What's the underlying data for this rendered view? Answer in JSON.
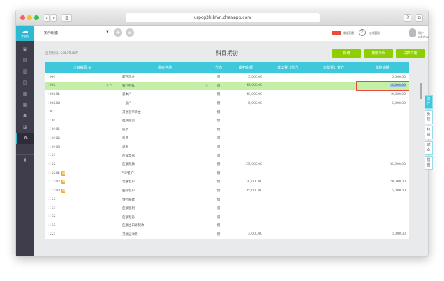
{
  "browser": {
    "url": "urpcg3hibfvn.chanapp.com"
  },
  "sidebar": {
    "logo_label": "专业版",
    "active_index": 7
  },
  "header": {
    "account": "演示账套",
    "live": "课程直播",
    "help": "在线客服",
    "user": "用户m8VrAr"
  },
  "main": {
    "period_label": "启用期间：",
    "period": "2017年06月",
    "title": "科目期初",
    "buttons": [
      "新增",
      "数量外币",
      "试算平衡"
    ],
    "columns": [
      "科目编码",
      "科目名称",
      "方向",
      "期初余额",
      "本年累计借方",
      "本年累计贷方",
      "年初余额"
    ],
    "rows": [
      {
        "code": "1001",
        "name": "库存现金",
        "dir": "借",
        "opening": "5,000.00",
        "debit": "",
        "credit": "",
        "year_start": "5,000.00"
      },
      {
        "code": "1002",
        "name": "银行存款",
        "dir": "借",
        "opening": "45,000.00",
        "debit": "",
        "credit": "",
        "year_start": "45,000.00",
        "selected": true
      },
      {
        "code": "100201",
        "name": "基本户",
        "dir": "借",
        "opening": "40,000.00",
        "debit": "",
        "credit": "",
        "year_start": "40,000.00"
      },
      {
        "code": "100202",
        "name": "一般户",
        "dir": "借",
        "opening": "5,000.00",
        "debit": "",
        "credit": "",
        "year_start": "5,000.00"
      },
      {
        "code": "1012",
        "name": "其他货币资金",
        "dir": "借",
        "opening": "",
        "debit": "",
        "credit": "",
        "year_start": ""
      },
      {
        "code": "1101",
        "name": "短期投资",
        "dir": "借",
        "opening": "",
        "debit": "",
        "credit": "",
        "year_start": ""
      },
      {
        "code": "110101",
        "name": "股票",
        "dir": "借",
        "opening": "",
        "debit": "",
        "credit": "",
        "year_start": ""
      },
      {
        "code": "110102",
        "name": "债券",
        "dir": "借",
        "opening": "",
        "debit": "",
        "credit": "",
        "year_start": ""
      },
      {
        "code": "110103",
        "name": "基金",
        "dir": "借",
        "opening": "",
        "debit": "",
        "credit": "",
        "year_start": ""
      },
      {
        "code": "1121",
        "name": "应收票据",
        "dir": "借",
        "opening": "",
        "debit": "",
        "credit": "",
        "year_start": ""
      },
      {
        "code": "1122",
        "name": "应收账款",
        "dir": "借",
        "opening": "35,000.00",
        "debit": "",
        "credit": "",
        "year_start": "35,000.00"
      },
      {
        "code": "112201",
        "name": "VIP客户",
        "dir": "借",
        "opening": "",
        "debit": "",
        "credit": "",
        "year_start": "",
        "badge": "辅"
      },
      {
        "code": "112202",
        "name": "普通客户",
        "dir": "借",
        "opening": "20,000.00",
        "debit": "",
        "credit": "",
        "year_start": "20,000.00",
        "badge": "辅"
      },
      {
        "code": "112203",
        "name": "国际客户",
        "dir": "借",
        "opening": "15,000.00",
        "debit": "",
        "credit": "",
        "year_start": "15,000.00",
        "badge": "辅"
      },
      {
        "code": "1123",
        "name": "预付账款",
        "dir": "借",
        "opening": "",
        "debit": "",
        "credit": "",
        "year_start": ""
      },
      {
        "code": "1131",
        "name": "应收股利",
        "dir": "借",
        "opening": "",
        "debit": "",
        "credit": "",
        "year_start": ""
      },
      {
        "code": "1132",
        "name": "应收利息",
        "dir": "借",
        "opening": "",
        "debit": "",
        "credit": "",
        "year_start": ""
      },
      {
        "code": "1133",
        "name": "应收出口退税款",
        "dir": "借",
        "opening": "",
        "debit": "",
        "credit": "",
        "year_start": ""
      },
      {
        "code": "1221",
        "name": "其他应收款",
        "dir": "借",
        "opening": "3,000.00",
        "debit": "",
        "credit": "",
        "year_start": "3,000.00"
      }
    ],
    "side_tabs": [
      "资产",
      "负债",
      "权益",
      "成本",
      "损益"
    ]
  },
  "colors": {
    "accent": "#3ec8dc",
    "button": "#8dcf00",
    "selected_row": "#c3f0a4",
    "sidebar": "#3f3d4b"
  }
}
